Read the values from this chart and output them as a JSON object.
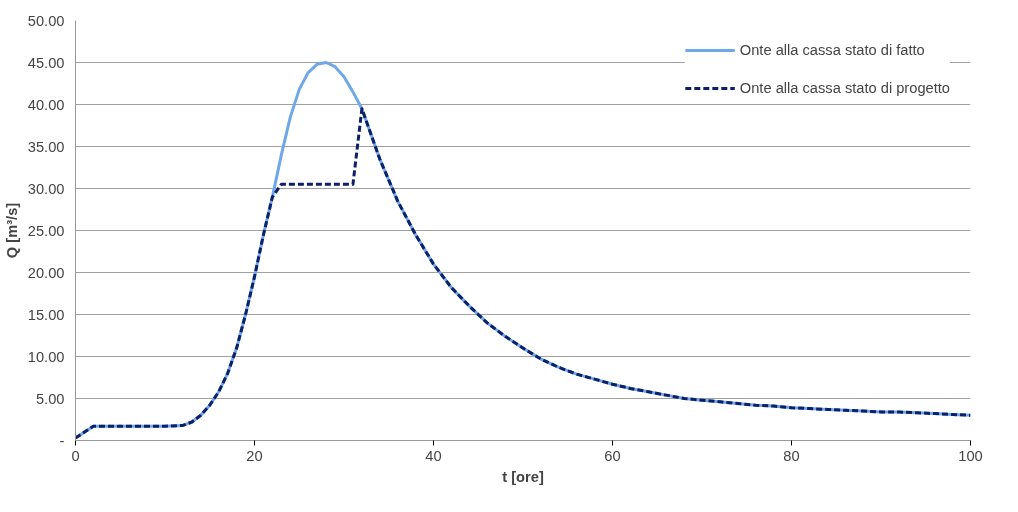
{
  "chart_data": {
    "type": "line",
    "xlabel": "t [ore]",
    "ylabel": "Q [m³/s]",
    "x": [
      0,
      2,
      4,
      6,
      8,
      10,
      12,
      13,
      14,
      15,
      16,
      17,
      18,
      19,
      20,
      21,
      22,
      23,
      24,
      25,
      26,
      27,
      28,
      29,
      30,
      31,
      32,
      34,
      36,
      38,
      40,
      42,
      44,
      46,
      48,
      50,
      52,
      54,
      56,
      58,
      60,
      62,
      64,
      66,
      68,
      70,
      72,
      74,
      76,
      78,
      80,
      82,
      84,
      86,
      88,
      90,
      92,
      94,
      96,
      98,
      100
    ],
    "series": [
      {
        "name": "Onte alla cassa stato di fatto",
        "color": "#6fa8e8",
        "line_style": "solid",
        "values": [
          0.3,
          1.7,
          1.7,
          1.7,
          1.7,
          1.7,
          1.8,
          2.2,
          3.0,
          4.2,
          5.8,
          8.0,
          11.0,
          15.0,
          19.5,
          24.5,
          29.0,
          34.0,
          38.5,
          41.8,
          43.8,
          44.8,
          45.0,
          44.5,
          43.3,
          41.5,
          39.5,
          33.5,
          28.5,
          24.5,
          21.0,
          18.2,
          16.0,
          14.0,
          12.4,
          11.0,
          9.7,
          8.7,
          7.9,
          7.3,
          6.7,
          6.2,
          5.8,
          5.4,
          5.0,
          4.8,
          4.6,
          4.4,
          4.2,
          4.1,
          3.9,
          3.8,
          3.7,
          3.6,
          3.5,
          3.4,
          3.4,
          3.3,
          3.2,
          3.1,
          3.0
        ]
      },
      {
        "name": "Onte alla cassa stato di progetto",
        "color": "#0d1f6b",
        "line_style": "dashed",
        "values": [
          0.3,
          1.7,
          1.7,
          1.7,
          1.7,
          1.7,
          1.8,
          2.2,
          3.0,
          4.2,
          5.8,
          8.0,
          11.0,
          15.0,
          19.5,
          24.5,
          29.0,
          30.5,
          30.5,
          30.5,
          30.5,
          30.5,
          30.5,
          30.5,
          30.5,
          30.5,
          39.5,
          33.5,
          28.5,
          24.5,
          21.0,
          18.2,
          16.0,
          14.0,
          12.4,
          11.0,
          9.7,
          8.7,
          7.9,
          7.3,
          6.7,
          6.2,
          5.8,
          5.4,
          5.0,
          4.8,
          4.6,
          4.4,
          4.2,
          4.1,
          3.9,
          3.8,
          3.7,
          3.6,
          3.5,
          3.4,
          3.4,
          3.3,
          3.2,
          3.1,
          3.0
        ]
      }
    ],
    "xlim": [
      0,
      100
    ],
    "xticks": [
      0,
      20,
      40,
      60,
      80,
      100
    ],
    "ylim": [
      0,
      50
    ],
    "yticks": [
      {
        "value": 0,
        "label": "-"
      },
      {
        "value": 5,
        "label": "5.00"
      },
      {
        "value": 10,
        "label": "10.00"
      },
      {
        "value": 15,
        "label": "15.00"
      },
      {
        "value": 20,
        "label": "20.00"
      },
      {
        "value": 25,
        "label": "25.00"
      },
      {
        "value": 30,
        "label": "30.00"
      },
      {
        "value": 35,
        "label": "35.00"
      },
      {
        "value": 40,
        "label": "40.00"
      },
      {
        "value": 45,
        "label": "45.00"
      },
      {
        "value": 50,
        "label": "50.00"
      }
    ],
    "grid": "y",
    "legend": "top right",
    "marker": "none"
  }
}
